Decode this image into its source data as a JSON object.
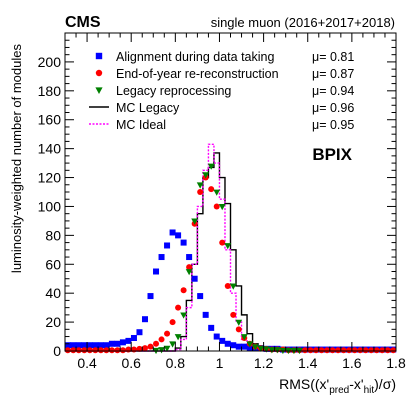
{
  "chart_data": {
    "type": "scatter",
    "experiment": "CMS",
    "dataset": "single muon (2016+2017+2018)",
    "region_label": "BPIX",
    "ylabel": "luminosity-weighted number of modules",
    "xlabel_parts": [
      "RMS((x'",
      "pred",
      "-x'",
      "hit",
      ")/σ)"
    ],
    "xlim": [
      0.3,
      1.8
    ],
    "ylim": [
      0,
      220
    ],
    "x_ticks": [
      "0.4",
      "0.6",
      "0.8",
      "1",
      "1.2",
      "1.4",
      "1.6",
      "1.8"
    ],
    "y_ticks": [
      "0",
      "20",
      "40",
      "60",
      "80",
      "100",
      "120",
      "140",
      "160",
      "180",
      "200"
    ],
    "bin_edges": [
      0.3,
      0.325,
      0.35,
      0.375,
      0.4,
      0.425,
      0.45,
      0.475,
      0.5,
      0.525,
      0.55,
      0.575,
      0.6,
      0.625,
      0.65,
      0.675,
      0.7,
      0.725,
      0.75,
      0.775,
      0.8,
      0.825,
      0.85,
      0.875,
      0.9,
      0.925,
      0.95,
      0.975,
      1.0,
      1.025,
      1.05,
      1.075,
      1.1,
      1.125,
      1.15,
      1.175,
      1.2,
      1.225,
      1.25,
      1.275,
      1.3,
      1.325,
      1.35,
      1.375,
      1.4,
      1.425,
      1.45,
      1.475,
      1.5,
      1.525,
      1.55,
      1.575,
      1.6,
      1.625,
      1.65,
      1.675,
      1.7,
      1.725,
      1.75,
      1.775,
      1.8
    ],
    "series": [
      {
        "name": "Alignment during data taking",
        "mu_label": "μ= 0.81",
        "marker": "square",
        "color": "#0000ff",
        "values": [
          4,
          4,
          4,
          4,
          4,
          4,
          4,
          4,
          5,
          5,
          6,
          7,
          9,
          13,
          22,
          38,
          55,
          65,
          73,
          82,
          80,
          75,
          65,
          50,
          38,
          25,
          16,
          10,
          7,
          5,
          4,
          3,
          3,
          2,
          2,
          2,
          1.5,
          1.5,
          1.5,
          1,
          1,
          1,
          1,
          1,
          1,
          1,
          1,
          1,
          1,
          1,
          1,
          1,
          1,
          1,
          1,
          1,
          1,
          1,
          1,
          1
        ]
      },
      {
        "name": "End-of-year re-reconstruction",
        "mu_label": "μ= 0.87",
        "marker": "circle",
        "color": "#ff0000",
        "values": [
          0.5,
          0.5,
          0.5,
          0.5,
          0.5,
          0.5,
          0.5,
          0.5,
          0.5,
          0.5,
          0.5,
          1,
          1,
          1.5,
          2,
          3,
          5,
          8,
          12,
          20,
          30,
          42,
          58,
          88,
          110,
          120,
          112,
          100,
          75,
          45,
          25,
          15,
          9,
          5,
          3,
          2,
          1.5,
          1,
          1,
          1,
          0.5,
          0.5,
          0.5,
          0.5,
          0.5,
          0.5,
          0.5,
          0.5,
          0.5,
          0.5,
          0.5,
          0.5,
          0.5,
          0.5,
          0.5,
          0.5,
          0.5,
          0.5,
          0.5,
          0.5
        ]
      },
      {
        "name": "Legacy reprocessing",
        "mu_label": "μ= 0.94",
        "marker": "triangle-down",
        "color": "#008000",
        "values": [
          0,
          0,
          0,
          0,
          0,
          0,
          0,
          0,
          0,
          0,
          0,
          0,
          0,
          0,
          0,
          0,
          0.5,
          1,
          2,
          5,
          10,
          25,
          55,
          90,
          115,
          122,
          128,
          110,
          100,
          73,
          45,
          20,
          10,
          5,
          3,
          2,
          1.5,
          1,
          1,
          0.5,
          0.5,
          0.5,
          0.5,
          0,
          0,
          0,
          0,
          0,
          0,
          0,
          0,
          0,
          0,
          0,
          0,
          0,
          0,
          0,
          0,
          0
        ]
      },
      {
        "name": "MC Legacy",
        "mu_label": "μ= 0.96",
        "marker": "step-solid",
        "color": "#000000",
        "values": [
          0,
          0,
          0,
          0,
          0,
          0,
          0,
          0,
          0,
          0,
          0,
          0,
          0,
          0,
          0,
          0,
          0,
          0,
          0,
          0,
          2,
          10,
          35,
          60,
          95,
          120,
          127,
          137,
          120,
          102,
          70,
          45,
          25,
          12,
          5,
          2,
          1,
          0.5,
          0.5,
          0,
          0,
          0,
          0,
          0,
          0,
          0,
          0,
          0,
          0,
          0,
          0,
          0,
          0,
          0,
          0,
          0,
          0,
          0,
          0,
          0
        ]
      },
      {
        "name": "MC Ideal",
        "mu_label": "μ= 0.95",
        "marker": "step-dotted",
        "color": "#ff00ff",
        "values": [
          0,
          0,
          0,
          0,
          0,
          0,
          0,
          0,
          0,
          0,
          0,
          0,
          0,
          0,
          0,
          0,
          0,
          0,
          0,
          0,
          1,
          8,
          30,
          60,
          100,
          125,
          143,
          130,
          105,
          70,
          40,
          20,
          8,
          3,
          1,
          0.5,
          0,
          0,
          0,
          0,
          0,
          0,
          0,
          0,
          0,
          0,
          0,
          0,
          0,
          0,
          0,
          0,
          0,
          0,
          0,
          0,
          0,
          0,
          0,
          0
        ]
      }
    ]
  }
}
